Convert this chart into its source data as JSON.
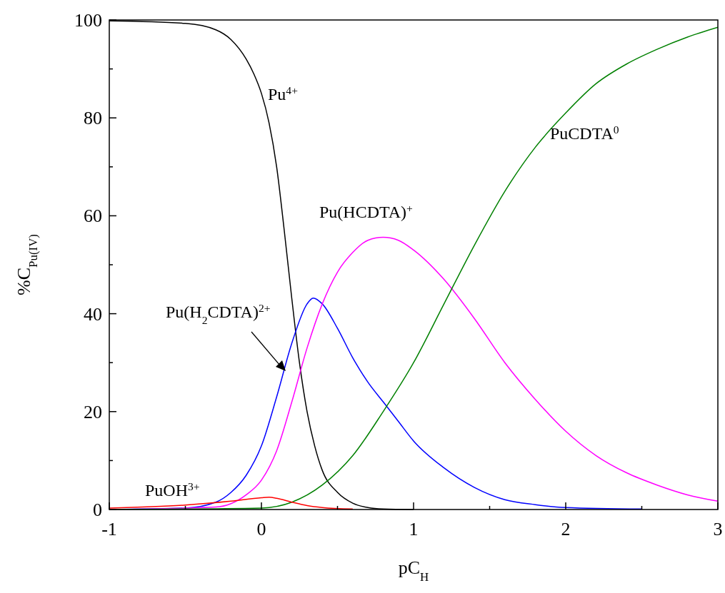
{
  "chart_data": {
    "type": "line",
    "xlabel": "pC$_{H}$",
    "ylabel": "%C$_{Pu(IV)}$",
    "xlim": [
      -1,
      3
    ],
    "ylim": [
      0,
      100
    ],
    "xticks": [
      -1,
      {
        "value": -0.5,
        "label": null
      },
      0,
      {
        "value": 0.5,
        "label": null
      },
      1,
      {
        "value": 1.5,
        "label": null
      },
      2,
      {
        "value": 2.5,
        "label": null
      },
      3
    ],
    "yticks": [
      0,
      {
        "value": 10,
        "label": null
      },
      20,
      {
        "value": 30,
        "label": null
      },
      40,
      {
        "value": 50,
        "label": null
      },
      60,
      {
        "value": 70,
        "label": null
      },
      80,
      {
        "value": 90,
        "label": null
      },
      100
    ],
    "grid": false,
    "marker": "none",
    "line_style": "solid",
    "series": [
      {
        "name": "Pu$^{4+}$",
        "color": "#000000",
        "x": [
          -1,
          -0.5,
          -0.3,
          -0.2,
          -0.1,
          -0.05,
          0,
          0.05,
          0.1,
          0.15,
          0.2,
          0.25,
          0.3,
          0.35,
          0.4,
          0.5,
          0.6,
          0.7,
          0.8,
          1
        ],
        "values": [
          99.8,
          99.3,
          98,
          96,
          92,
          89,
          85,
          79,
          70,
          57,
          43,
          30,
          20,
          13,
          8,
          3.5,
          1.3,
          0.4,
          0.1,
          0
        ]
      },
      {
        "name": "Pu(H$_{2}$CDTA)$^{2+}$",
        "color": "#0000ff",
        "x": [
          -1,
          -0.5,
          -0.3,
          -0.2,
          -0.1,
          0,
          0.1,
          0.2,
          0.3,
          0.34,
          0.4,
          0.5,
          0.6,
          0.7,
          0.8,
          0.9,
          1,
          1.2,
          1.4,
          1.6,
          1.8,
          2,
          2.5
        ],
        "values": [
          0,
          0.3,
          1.5,
          3.5,
          7,
          13,
          23,
          34,
          42,
          43.2,
          42,
          37,
          31,
          26,
          22,
          18,
          14,
          8.5,
          4.5,
          2,
          1,
          0.4,
          0.1
        ]
      },
      {
        "name": "Pu(HCDTA)$^{+}$",
        "color": "#ff00ff",
        "x": [
          -1,
          -0.3,
          -0.2,
          -0.1,
          0,
          0.1,
          0.2,
          0.3,
          0.4,
          0.5,
          0.6,
          0.7,
          0.8,
          0.9,
          1,
          1.2,
          1.4,
          1.6,
          1.8,
          2,
          2.2,
          2.4,
          2.6,
          2.8,
          3
        ],
        "values": [
          0,
          0.5,
          1.2,
          3,
          6,
          12,
          22,
          33,
          42,
          48.5,
          52.5,
          55,
          55.6,
          55,
          53,
          47,
          39,
          30,
          22.5,
          16,
          11,
          7.5,
          5,
          3,
          1.7
        ]
      },
      {
        "name": "PuCDTA$^{0}$",
        "color": "#008000",
        "x": [
          -1,
          0,
          0.2,
          0.4,
          0.6,
          0.8,
          1,
          1.2,
          1.4,
          1.6,
          1.8,
          2,
          2.2,
          2.4,
          2.6,
          2.8,
          3
        ],
        "values": [
          0,
          0.3,
          1.5,
          5,
          11,
          20,
          30,
          42,
          54,
          65,
          74,
          81,
          87,
          91,
          94,
          96.5,
          98.5
        ]
      },
      {
        "name": "PuOH$^{3+}$",
        "color": "#ff0000",
        "x": [
          -1,
          -0.5,
          -0.2,
          0,
          0.05,
          0.1,
          0.2,
          0.3,
          0.4,
          0.6
        ],
        "values": [
          0.3,
          0.9,
          1.7,
          2.4,
          2.5,
          2.3,
          1.5,
          0.8,
          0.4,
          0.1
        ]
      }
    ]
  }
}
